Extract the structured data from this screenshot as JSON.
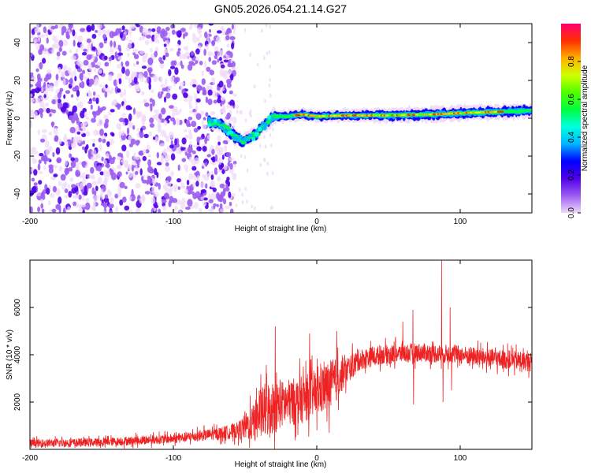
{
  "title": "GN05.2026.054.21.14.G27",
  "chart_data": [
    {
      "type": "heatmap",
      "xlabel": "Height of straight line (km)",
      "ylabel": "Frequency (Hz)",
      "xlim": [
        -200,
        150
      ],
      "ylim": [
        -50,
        50
      ],
      "xticks": [
        -200,
        -100,
        0,
        100
      ],
      "yticks": [
        -40,
        -20,
        0,
        20,
        40
      ],
      "xtick_labels": [
        "-200",
        "-100",
        "0",
        "100"
      ],
      "ytick_labels": [
        "-40",
        "-20",
        "0",
        "20",
        "40"
      ],
      "colorbar": {
        "label": "Normalized spectral amplitude",
        "range": [
          0.0,
          1.0
        ],
        "ticks": [
          0.0,
          0.2,
          0.4,
          0.6,
          0.8
        ],
        "tick_labels": [
          "0.0",
          "0.2",
          "0.4",
          "0.6",
          "0.8"
        ],
        "colormap": [
          "#f0d8f8",
          "#9b5cf0",
          "#5000e8",
          "#0000ff",
          "#00b4ff",
          "#00ffe0",
          "#00ff40",
          "#50ff00",
          "#d0ff00",
          "#ffb000",
          "#ff3000",
          "#ff0070"
        ]
      },
      "noise_region_x": [
        -200,
        -60
      ],
      "signal_track": [
        {
          "x": -75,
          "f": -2
        },
        {
          "x": -68,
          "f": -3
        },
        {
          "x": -62,
          "f": -6
        },
        {
          "x": -57,
          "f": -10
        },
        {
          "x": -52,
          "f": -12
        },
        {
          "x": -46,
          "f": -10
        },
        {
          "x": -42,
          "f": -8
        },
        {
          "x": -38,
          "f": -5
        },
        {
          "x": -34,
          "f": -2
        },
        {
          "x": -30,
          "f": 1
        },
        {
          "x": -20,
          "f": 1
        },
        {
          "x": -10,
          "f": 2
        },
        {
          "x": 0,
          "f": 1
        },
        {
          "x": 20,
          "f": 1.5
        },
        {
          "x": 50,
          "f": 1.5
        },
        {
          "x": 80,
          "f": 2
        },
        {
          "x": 110,
          "f": 3
        },
        {
          "x": 150,
          "f": 4
        }
      ]
    },
    {
      "type": "line",
      "xlabel": "Height of straight line (km)",
      "ylabel": "SNR (10 * v/v)",
      "xlim": [
        -200,
        150
      ],
      "ylim": [
        0,
        8000
      ],
      "xticks": [
        -200,
        -100,
        0,
        100
      ],
      "yticks": [
        2000,
        4000,
        6000
      ],
      "xtick_labels": [
        "-200",
        "-100",
        "0",
        "100"
      ],
      "ytick_labels": [
        "2000",
        "4000",
        "6000"
      ],
      "color": "#ee2222",
      "envelope": [
        {
          "x": -200,
          "mean": 250,
          "spread": 350
        },
        {
          "x": -150,
          "mean": 300,
          "spread": 350
        },
        {
          "x": -100,
          "mean": 450,
          "spread": 400
        },
        {
          "x": -70,
          "mean": 650,
          "spread": 500
        },
        {
          "x": -55,
          "mean": 800,
          "spread": 700
        },
        {
          "x": -45,
          "mean": 1100,
          "spread": 1500
        },
        {
          "x": -35,
          "mean": 1700,
          "spread": 2500
        },
        {
          "x": -25,
          "mean": 1900,
          "spread": 2000
        },
        {
          "x": -10,
          "mean": 2100,
          "spread": 2000
        },
        {
          "x": 0,
          "mean": 2400,
          "spread": 2000
        },
        {
          "x": 10,
          "mean": 2700,
          "spread": 2200
        },
        {
          "x": 20,
          "mean": 3300,
          "spread": 1200
        },
        {
          "x": 30,
          "mean": 3800,
          "spread": 900
        },
        {
          "x": 45,
          "mean": 4000,
          "spread": 800
        },
        {
          "x": 70,
          "mean": 4100,
          "spread": 800
        },
        {
          "x": 100,
          "mean": 4000,
          "spread": 800
        },
        {
          "x": 130,
          "mean": 3800,
          "spread": 800
        },
        {
          "x": 150,
          "mean": 3700,
          "spread": 800
        }
      ],
      "spikes": [
        {
          "x": -29,
          "y": 5200
        },
        {
          "x": -42,
          "y": 2600
        },
        {
          "x": -5,
          "y": 4900
        },
        {
          "x": 14,
          "y": 5000
        },
        {
          "x": 60,
          "y": 5400
        },
        {
          "x": 67,
          "y": 5900
        },
        {
          "x": 67.5,
          "y": 1900
        },
        {
          "x": 87,
          "y": 8000
        },
        {
          "x": 88,
          "y": 2000
        },
        {
          "x": 93,
          "y": 6000
        },
        {
          "x": 94,
          "y": 2500
        }
      ]
    }
  ]
}
